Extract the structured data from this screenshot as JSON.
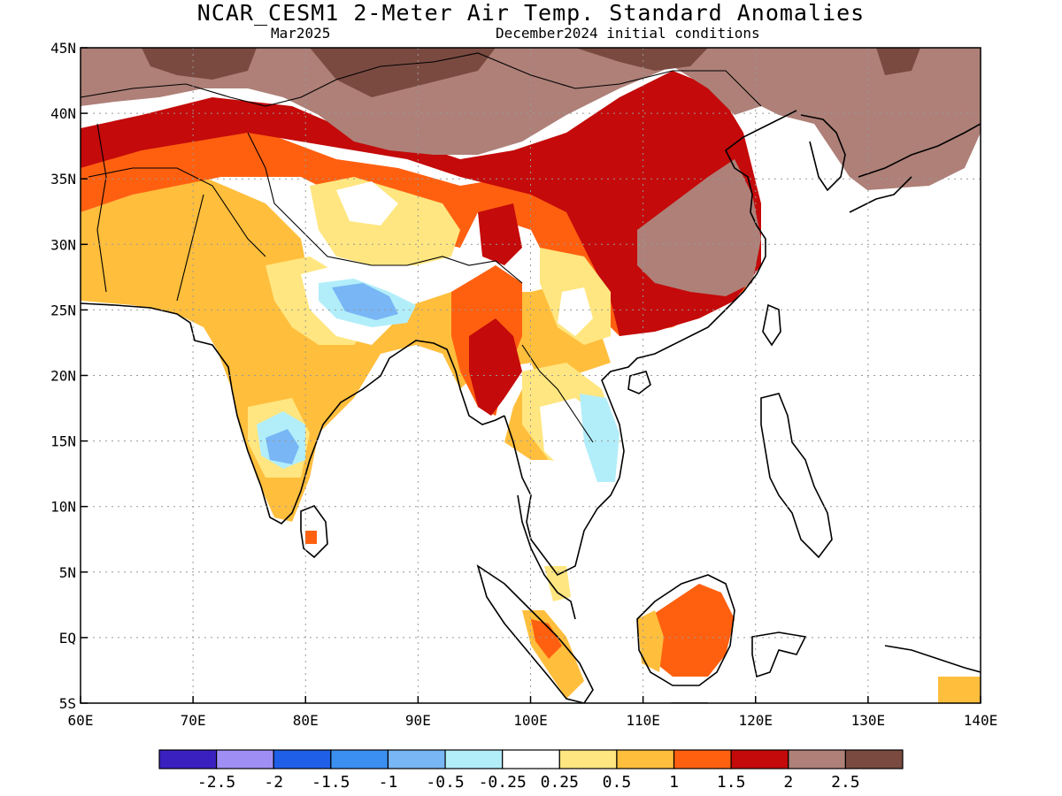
{
  "title": "NCAR_CESM1 2-Meter Air Temp. Standard Anomalies",
  "valid_month": "Mar2025",
  "init_conditions": "December2024 initial conditions",
  "colors": {
    "m25": "#3b20c0",
    "m2": "#9f8ff5",
    "m15": "#1f5fe8",
    "m1": "#3a8ff0",
    "m05": "#78b6f5",
    "m025": "#b2eefa",
    "zero": "#ffffff",
    "p025": "#ffe680",
    "p05": "#ffbe3c",
    "p1": "#ff6010",
    "p15": "#c40a0a",
    "p2": "#ae8078",
    "p25": "#7a4a40"
  },
  "chart_data": {
    "type": "heatmap",
    "title": "NCAR_CESM1 2-Meter Air Temp. Standard Anomalies",
    "lon_range": [
      60,
      140
    ],
    "lat_range": [
      -5,
      45
    ],
    "x_ticks": [
      "60E",
      "70E",
      "80E",
      "90E",
      "100E",
      "110E",
      "120E",
      "130E",
      "140E"
    ],
    "y_ticks": [
      "5S",
      "EQ",
      "5N",
      "10N",
      "15N",
      "20N",
      "25N",
      "30N",
      "35N",
      "40N",
      "45N"
    ],
    "grid": "dotted",
    "colorbar": {
      "bounds": [
        "-2.5",
        "-2",
        "-1.5",
        "-1",
        "-0.5",
        "-0.25",
        "0.25",
        "0.5",
        "1",
        "1.5",
        "2",
        "2.5"
      ],
      "colors": [
        "#3b20c0",
        "#9f8ff5",
        "#1f5fe8",
        "#3a8ff0",
        "#78b6f5",
        "#b2eefa",
        "#ffffff",
        "#ffe680",
        "#ffbe3c",
        "#ff6010",
        "#c40a0a",
        "#ae8078",
        "#7a4a40"
      ]
    }
  }
}
